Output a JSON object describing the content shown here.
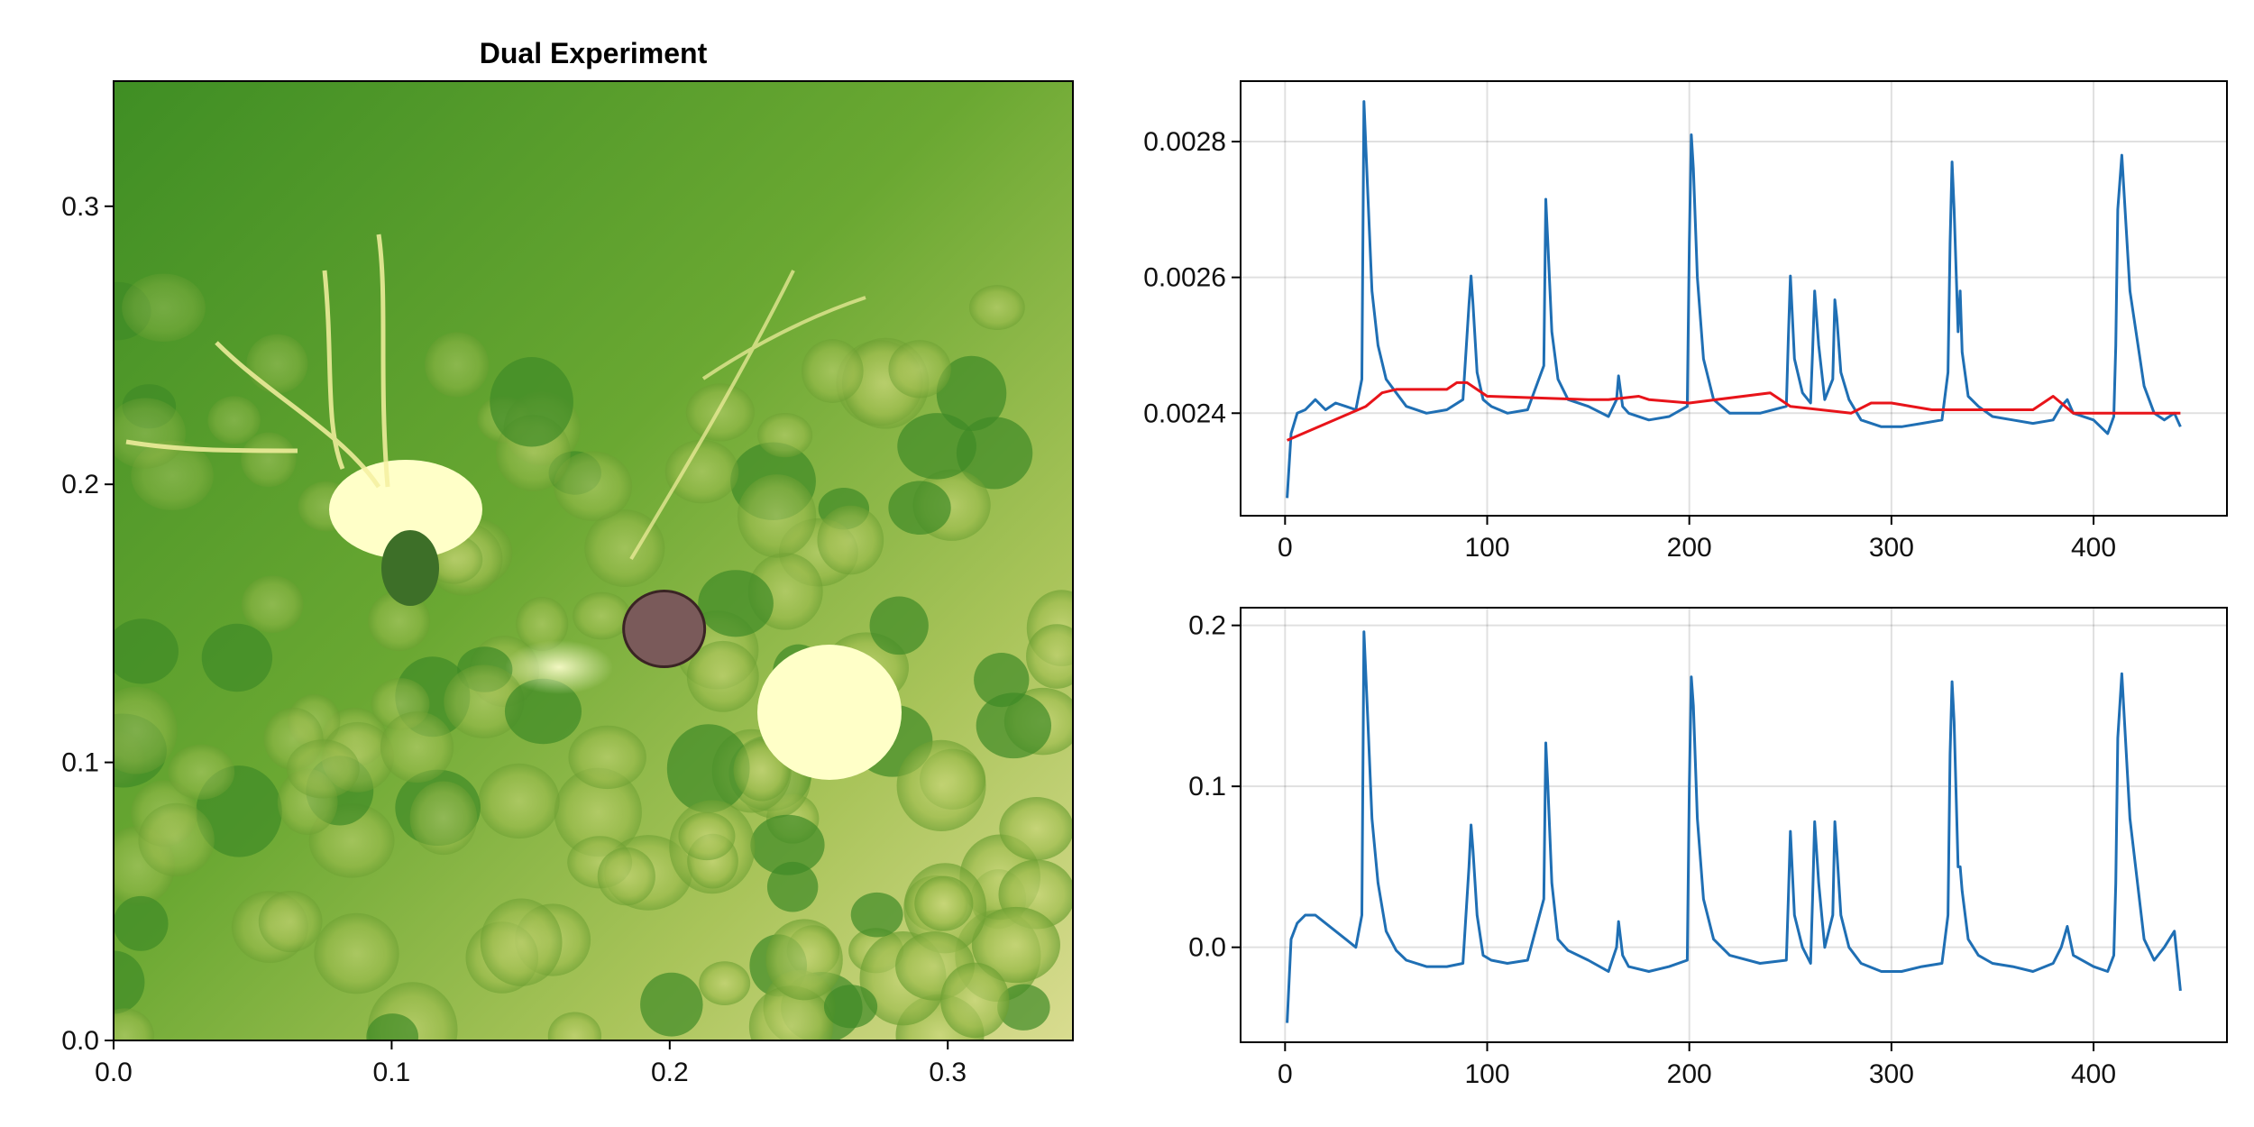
{
  "chart_data": [
    {
      "type": "heatmap",
      "title": "Dual Experiment",
      "xlim": [
        0,
        0.345
      ],
      "ylim": [
        0,
        0.345
      ],
      "xticks": [
        0.0,
        0.1,
        0.2,
        0.3
      ],
      "yticks": [
        0.0,
        0.1,
        0.2,
        0.3
      ],
      "xtick_labels": [
        "0.0",
        "0.1",
        "0.2",
        "0.3"
      ],
      "ytick_labels": [
        "0.0",
        "0.1",
        "0.2",
        "0.3"
      ],
      "colormap": [
        "#2f7d1f",
        "#4f9a2a",
        "#93bb45",
        "#d6dc8a",
        "#ffffc8"
      ],
      "overlay_region": {
        "x": 0.198,
        "y": 0.148,
        "color": "#7a5a5a"
      },
      "grid": false
    },
    {
      "type": "line",
      "title": "",
      "xlim": [
        -22,
        466
      ],
      "ylim": [
        0.002249,
        0.002889
      ],
      "xticks": [
        0,
        100,
        200,
        300,
        400
      ],
      "yticks": [
        0.0024,
        0.0026,
        0.0028
      ],
      "xtick_labels": [
        "0",
        "100",
        "200",
        "300",
        "400"
      ],
      "ytick_labels": [
        "0.0024",
        "0.0026",
        "0.0028"
      ],
      "grid": true,
      "series": [
        {
          "color": "#1f6fb4",
          "x": [
            1,
            3,
            6,
            10,
            15,
            20,
            25,
            30,
            35,
            38,
            39,
            41,
            43,
            46,
            50,
            55,
            60,
            70,
            80,
            88,
            91,
            92,
            93,
            95,
            98,
            102,
            110,
            120,
            128,
            129,
            130,
            132,
            135,
            140,
            150,
            160,
            164,
            165,
            167,
            170,
            180,
            190,
            199,
            200,
            201,
            202,
            204,
            207,
            212,
            220,
            235,
            248,
            249,
            250,
            252,
            256,
            260,
            261,
            262,
            264,
            267,
            271,
            272,
            273,
            275,
            279,
            285,
            295,
            305,
            315,
            325,
            328,
            329,
            330,
            331,
            333,
            334,
            335,
            338,
            343,
            350,
            360,
            370,
            380,
            384,
            387,
            390,
            400,
            407,
            410,
            411,
            412,
            414,
            418,
            425,
            430,
            435,
            440,
            443
          ],
          "y": [
            0.002275,
            0.00237,
            0.0024,
            0.002405,
            0.00242,
            0.002405,
            0.002415,
            0.00241,
            0.002405,
            0.00245,
            0.002859,
            0.00272,
            0.00258,
            0.0025,
            0.00245,
            0.00243,
            0.00241,
            0.0024,
            0.002405,
            0.00242,
            0.00256,
            0.002602,
            0.00256,
            0.00246,
            0.00242,
            0.00241,
            0.0024,
            0.002405,
            0.00247,
            0.002715,
            0.00265,
            0.00252,
            0.00245,
            0.00242,
            0.00241,
            0.002395,
            0.00242,
            0.002455,
            0.00241,
            0.0024,
            0.00239,
            0.002395,
            0.00241,
            0.00265,
            0.00281,
            0.00276,
            0.0026,
            0.00248,
            0.00242,
            0.0024,
            0.0024,
            0.00241,
            0.00251,
            0.002602,
            0.00248,
            0.00243,
            0.002415,
            0.00249,
            0.00258,
            0.0025,
            0.00242,
            0.00245,
            0.002567,
            0.00254,
            0.00246,
            0.00242,
            0.00239,
            0.00238,
            0.00238,
            0.002385,
            0.00239,
            0.00246,
            0.00265,
            0.00277,
            0.0027,
            0.00252,
            0.00258,
            0.00249,
            0.002425,
            0.00241,
            0.002395,
            0.00239,
            0.002385,
            0.00239,
            0.00241,
            0.00242,
            0.0024,
            0.00239,
            0.00237,
            0.002395,
            0.0025,
            0.0027,
            0.00278,
            0.00258,
            0.00244,
            0.0024,
            0.00239,
            0.0024,
            0.00238
          ]
        },
        {
          "color": "#e8141a",
          "x": [
            1,
            40,
            48,
            55,
            80,
            85,
            90,
            100,
            150,
            160,
            175,
            180,
            200,
            240,
            250,
            280,
            290,
            300,
            320,
            330,
            370,
            380,
            390,
            443
          ],
          "y": [
            0.00236,
            0.00241,
            0.00243,
            0.002435,
            0.002435,
            0.002445,
            0.002445,
            0.002425,
            0.00242,
            0.00242,
            0.002425,
            0.00242,
            0.002415,
            0.00243,
            0.00241,
            0.0024,
            0.002415,
            0.002415,
            0.002405,
            0.002405,
            0.002405,
            0.002425,
            0.0024,
            0.0024
          ]
        }
      ]
    },
    {
      "type": "line",
      "title": "",
      "xlim": [
        -22,
        466
      ],
      "ylim": [
        -0.059,
        0.211
      ],
      "xticks": [
        0,
        100,
        200,
        300,
        400
      ],
      "yticks": [
        0.0,
        0.1,
        0.2
      ],
      "xtick_labels": [
        "0",
        "100",
        "200",
        "300",
        "400"
      ],
      "ytick_labels": [
        "0.0",
        "0.1",
        "0.2"
      ],
      "grid": true,
      "series": [
        {
          "color": "#1f6fb4",
          "x": [
            1,
            3,
            6,
            10,
            15,
            20,
            25,
            30,
            35,
            38,
            39,
            41,
            43,
            46,
            50,
            55,
            60,
            70,
            80,
            88,
            91,
            92,
            93,
            95,
            98,
            102,
            110,
            120,
            128,
            129,
            130,
            132,
            135,
            140,
            150,
            160,
            164,
            165,
            167,
            170,
            180,
            190,
            199,
            200,
            201,
            202,
            204,
            207,
            212,
            220,
            235,
            248,
            249,
            250,
            252,
            256,
            260,
            261,
            262,
            264,
            267,
            271,
            272,
            273,
            275,
            279,
            285,
            295,
            305,
            315,
            325,
            328,
            329,
            330,
            331,
            333,
            334,
            335,
            338,
            343,
            350,
            360,
            370,
            380,
            384,
            387,
            390,
            400,
            407,
            410,
            411,
            412,
            414,
            418,
            425,
            430,
            435,
            440,
            443
          ],
          "y": [
            -0.047,
            0.005,
            0.015,
            0.02,
            0.02,
            0.015,
            0.01,
            0.005,
            0.0,
            0.02,
            0.196,
            0.14,
            0.08,
            0.04,
            0.01,
            -0.002,
            -0.008,
            -0.012,
            -0.012,
            -0.01,
            0.05,
            0.076,
            0.06,
            0.02,
            -0.005,
            -0.008,
            -0.01,
            -0.008,
            0.03,
            0.127,
            0.1,
            0.04,
            0.005,
            -0.002,
            -0.008,
            -0.015,
            0.0,
            0.016,
            -0.005,
            -0.012,
            -0.015,
            -0.012,
            -0.008,
            0.1,
            0.168,
            0.15,
            0.08,
            0.03,
            0.005,
            -0.005,
            -0.01,
            -0.008,
            0.03,
            0.072,
            0.02,
            0.0,
            -0.01,
            0.03,
            0.078,
            0.04,
            0.0,
            0.02,
            0.078,
            0.06,
            0.02,
            0.0,
            -0.01,
            -0.015,
            -0.015,
            -0.012,
            -0.01,
            0.02,
            0.12,
            0.165,
            0.14,
            0.05,
            0.05,
            0.035,
            0.005,
            -0.005,
            -0.01,
            -0.012,
            -0.015,
            -0.01,
            0.0,
            0.013,
            -0.005,
            -0.012,
            -0.015,
            -0.005,
            0.04,
            0.13,
            0.17,
            0.08,
            0.005,
            -0.008,
            0.0,
            0.01,
            -0.027
          ]
        }
      ]
    }
  ]
}
